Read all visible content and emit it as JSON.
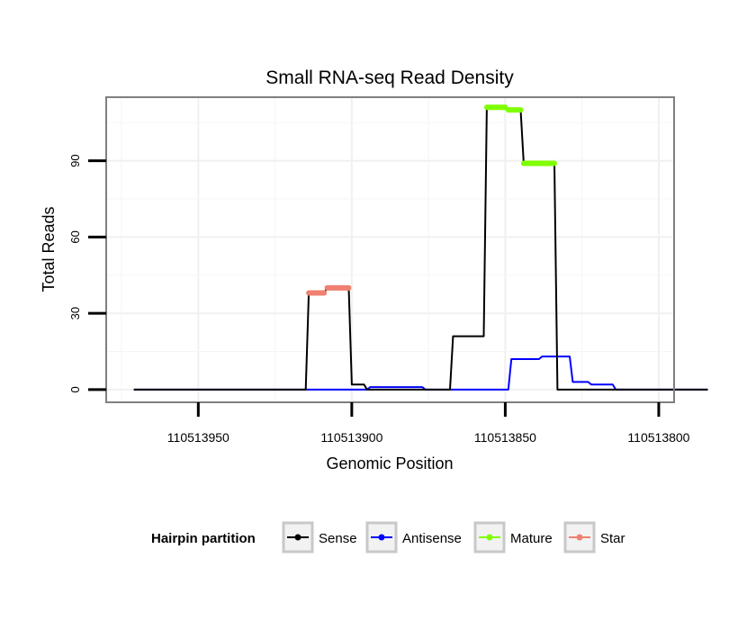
{
  "chart_data": {
    "type": "line",
    "title": "Small RNA-seq Read Density",
    "xlabel": "Genomic Position",
    "ylabel": "Total Reads",
    "xlim": [
      110513980,
      110513795
    ],
    "ylim": [
      -5,
      115
    ],
    "x_reversed": true,
    "xticks": [
      110513950,
      110513900,
      110513850,
      110513800
    ],
    "xtick_labels": [
      "110513950",
      "110513900",
      "110513850",
      "110513800"
    ],
    "yticks": [
      0,
      30,
      60,
      90
    ],
    "ytick_labels": [
      "0",
      "30",
      "60",
      "90"
    ],
    "grid": true,
    "legend": {
      "title": "Hairpin partition",
      "position": "bottom",
      "entries": [
        "Sense",
        "Antisense",
        "Mature",
        "Star"
      ]
    },
    "colors": {
      "Sense": "#000000",
      "Antisense": "#0000ff",
      "Mature": "#7fff00",
      "Star": "#f08070"
    },
    "series": [
      {
        "name": "Sense",
        "points": [
          [
            110513971,
            0
          ],
          [
            110513915,
            0
          ],
          [
            110513914,
            38
          ],
          [
            110513909,
            38
          ],
          [
            110513908,
            40
          ],
          [
            110513901,
            40
          ],
          [
            110513900,
            2
          ],
          [
            110513896,
            2
          ],
          [
            110513895,
            0
          ],
          [
            110513868,
            0
          ],
          [
            110513867,
            21
          ],
          [
            110513857,
            21
          ],
          [
            110513856,
            111
          ],
          [
            110513850,
            111
          ],
          [
            110513849,
            110
          ],
          [
            110513845,
            110
          ],
          [
            110513844,
            89
          ],
          [
            110513834,
            89
          ],
          [
            110513833,
            0
          ],
          [
            110513784,
            0
          ]
        ]
      },
      {
        "name": "Antisense",
        "points": [
          [
            110513971,
            0
          ],
          [
            110513895,
            0
          ],
          [
            110513894,
            1
          ],
          [
            110513877,
            1
          ],
          [
            110513876,
            0
          ],
          [
            110513849,
            0
          ],
          [
            110513848,
            12
          ],
          [
            110513839,
            12
          ],
          [
            110513838,
            13
          ],
          [
            110513829,
            13
          ],
          [
            110513828,
            3
          ],
          [
            110513823,
            3
          ],
          [
            110513822,
            2
          ],
          [
            110513815,
            2
          ],
          [
            110513814,
            0
          ],
          [
            110513784,
            0
          ]
        ]
      },
      {
        "name": "Mature",
        "points": [
          [
            110513856,
            111
          ],
          [
            110513850,
            111
          ],
          [
            110513849,
            110
          ],
          [
            110513845,
            110
          ],
          [
            110513844,
            89
          ],
          [
            110513834,
            89
          ]
        ],
        "segments": [
          [
            110513856,
            110513850,
            111
          ],
          [
            110513849,
            110513845,
            110
          ],
          [
            110513844,
            110513834,
            89
          ]
        ]
      },
      {
        "name": "Star",
        "segments": [
          [
            110513914,
            110513909,
            38
          ],
          [
            110513908,
            110513901,
            40
          ]
        ]
      }
    ]
  }
}
